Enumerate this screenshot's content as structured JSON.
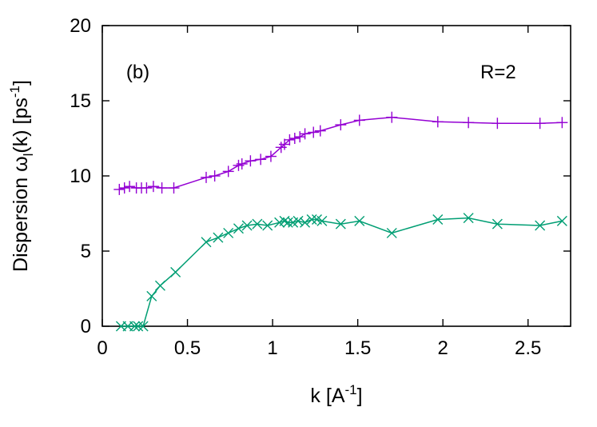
{
  "chart_data": {
    "type": "line",
    "title": "",
    "xlabel": "k [A",
    "xlabel_sup": "-1",
    "xlabel_close": "]",
    "ylabel": "Dispersion ω",
    "ylabel_sub": "l",
    "ylabel_mid": "(k) [ps",
    "ylabel_sup": "-1",
    "ylabel_close": "]",
    "xlim": [
      0,
      2.75
    ],
    "ylim": [
      0,
      20
    ],
    "xticks": [
      0,
      0.5,
      1,
      1.5,
      2,
      2.5
    ],
    "xtick_labels": [
      "0",
      "0.5",
      "1",
      "1.5",
      "2",
      "2.5"
    ],
    "yticks": [
      0,
      5,
      10,
      15,
      20
    ],
    "ytick_labels": [
      "0",
      "5",
      "10",
      "15",
      "20"
    ],
    "grid": false,
    "annotations": [
      {
        "text": "(b)",
        "x": 0.14,
        "y": 16.5
      },
      {
        "text": "R=2",
        "x": 2.22,
        "y": 16.5
      }
    ],
    "series": [
      {
        "marker": "plus",
        "color": "#9400d3",
        "x": [
          0.1,
          0.13,
          0.16,
          0.2,
          0.23,
          0.26,
          0.3,
          0.35,
          0.42,
          0.61,
          0.66,
          0.74,
          0.8,
          0.82,
          0.87,
          0.93,
          0.99,
          1.05,
          1.07,
          1.1,
          1.13,
          1.16,
          1.19,
          1.24,
          1.28,
          1.4,
          1.51,
          1.7,
          1.97,
          2.15,
          2.32,
          2.57,
          2.7
        ],
        "y": [
          9.1,
          9.2,
          9.3,
          9.2,
          9.2,
          9.2,
          9.3,
          9.2,
          9.2,
          9.9,
          10.0,
          10.3,
          10.7,
          10.8,
          11.0,
          11.1,
          11.3,
          11.9,
          12.1,
          12.4,
          12.5,
          12.6,
          12.8,
          12.9,
          13.0,
          13.4,
          13.7,
          13.9,
          13.6,
          13.55,
          13.5,
          13.5,
          13.55
        ]
      },
      {
        "marker": "cross",
        "color": "#009e73",
        "x": [
          0.11,
          0.15,
          0.19,
          0.21,
          0.24,
          0.29,
          0.34,
          0.43,
          0.61,
          0.68,
          0.74,
          0.8,
          0.85,
          0.91,
          0.97,
          1.04,
          1.07,
          1.09,
          1.12,
          1.15,
          1.19,
          1.23,
          1.26,
          1.29,
          1.4,
          1.51,
          1.7,
          1.97,
          2.15,
          2.32,
          2.57,
          2.7
        ],
        "y": [
          0.0,
          0.0,
          0.0,
          0.0,
          0.0,
          2.0,
          2.7,
          3.6,
          5.6,
          5.9,
          6.2,
          6.5,
          6.7,
          6.8,
          6.7,
          6.9,
          7.0,
          6.9,
          6.9,
          7.0,
          6.9,
          7.1,
          7.1,
          7.0,
          6.8,
          7.0,
          6.2,
          7.1,
          7.2,
          6.8,
          6.7,
          7.0
        ]
      }
    ]
  }
}
